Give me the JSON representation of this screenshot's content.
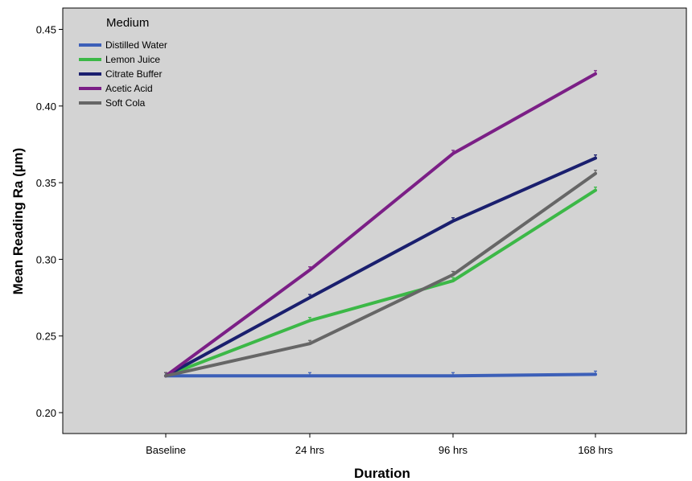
{
  "chart_data": {
    "type": "line",
    "xlabel": "Duration",
    "ylabel": "Mean Reading Ra (µm)",
    "categories": [
      "Baseline",
      "24 hrs",
      "96 hrs",
      "168 hrs"
    ],
    "ylim": [
      0.195,
      0.465
    ],
    "yticks": [
      0.2,
      0.25,
      0.3,
      0.35,
      0.4,
      0.45
    ],
    "ytick_labels": [
      "0.20",
      "0.25",
      "0.30",
      "0.35",
      "0.40",
      "0.45"
    ],
    "grid": false,
    "plot_background": "#d3d3d3",
    "legend": {
      "title": "Medium",
      "placement": "top-left"
    },
    "series": [
      {
        "name": "Distilled Water",
        "color": "#3c5fb8",
        "values": [
          0.224,
          0.224,
          0.224,
          0.225
        ]
      },
      {
        "name": "Lemon Juice",
        "color": "#3cb847",
        "values": [
          0.224,
          0.26,
          0.286,
          0.345
        ]
      },
      {
        "name": "Citrate Buffer",
        "color": "#1a1f6e",
        "values": [
          0.224,
          0.275,
          0.325,
          0.366
        ]
      },
      {
        "name": "Acetic Acid",
        "color": "#7b1f86",
        "values": [
          0.224,
          0.293,
          0.369,
          0.421
        ]
      },
      {
        "name": "Soft Cola",
        "color": "#666666",
        "values": [
          0.224,
          0.245,
          0.29,
          0.356
        ]
      }
    ]
  }
}
